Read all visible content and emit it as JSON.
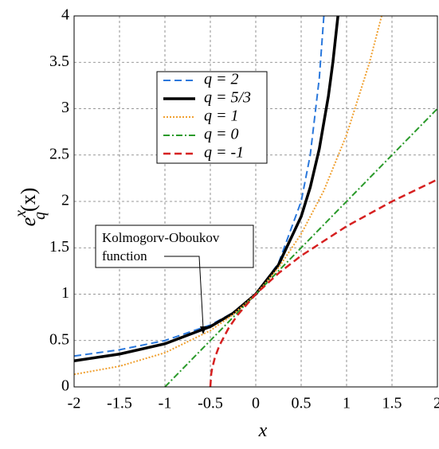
{
  "chart_data": {
    "type": "line",
    "xlabel": "x",
    "ylabel": {
      "base": "e",
      "sup": "x",
      "sub": "q",
      "arg": "(x)"
    },
    "xlim": [
      -2,
      2
    ],
    "xticks": [
      -2,
      -1.5,
      -1,
      -0.5,
      0,
      0.5,
      1,
      1.5,
      2
    ],
    "ylim": [
      0,
      4
    ],
    "yticks": [
      0,
      0.5,
      1,
      1.5,
      2,
      2.5,
      3,
      3.5,
      4
    ],
    "grid": true,
    "annotation": [
      "Kolmogorv-Oboukov",
      "function"
    ],
    "series": [
      {
        "name": "q = 2",
        "color": "#2a78dc",
        "linestyle": "dashed",
        "linewidth": 2,
        "x": [
          -2,
          -1.5,
          -1,
          -0.5,
          -0.25,
          0,
          0.25,
          0.5,
          0.6,
          0.7,
          0.75
        ],
        "values": [
          0.333,
          0.4,
          0.5,
          0.667,
          0.8,
          1,
          1.333,
          2,
          2.5,
          3.333,
          4
        ]
      },
      {
        "name": "q = 5/3",
        "color": "#000000",
        "linestyle": "solid",
        "linewidth": 3.5,
        "x": [
          -2,
          -1.5,
          -1,
          -0.5,
          -0.25,
          0,
          0.25,
          0.5,
          0.6,
          0.7,
          0.8,
          0.85,
          0.905
        ],
        "values": [
          0.281,
          0.354,
          0.465,
          0.65,
          0.794,
          1,
          1.315,
          1.837,
          2.152,
          2.568,
          3.137,
          3.506,
          4
        ]
      },
      {
        "name": "q = 1",
        "color": "#f0a030",
        "linestyle": "dotted",
        "linewidth": 2,
        "x": [
          -2,
          -1.5,
          -1,
          -0.5,
          -0.25,
          0,
          0.25,
          0.5,
          0.75,
          1,
          1.25,
          1.386
        ],
        "values": [
          0.135,
          0.223,
          0.368,
          0.607,
          0.779,
          1,
          1.284,
          1.649,
          2.117,
          2.718,
          3.49,
          4
        ]
      },
      {
        "name": "q = 0",
        "color": "#2a9a2a",
        "linestyle": "dashdot",
        "linewidth": 2,
        "x": [
          -1,
          2
        ],
        "values": [
          0,
          3
        ]
      },
      {
        "name": "q = -1",
        "color": "#d62020",
        "linestyle": "dashed",
        "linewidth": 2.5,
        "x": [
          -0.5,
          -0.49,
          -0.48,
          -0.45,
          -0.4,
          -0.3,
          -0.2,
          0,
          0.25,
          0.5,
          1,
          1.5,
          2
        ],
        "values": [
          0,
          0.141,
          0.2,
          0.316,
          0.447,
          0.632,
          0.775,
          1,
          1.225,
          1.414,
          1.732,
          2,
          2.236
        ]
      }
    ]
  }
}
